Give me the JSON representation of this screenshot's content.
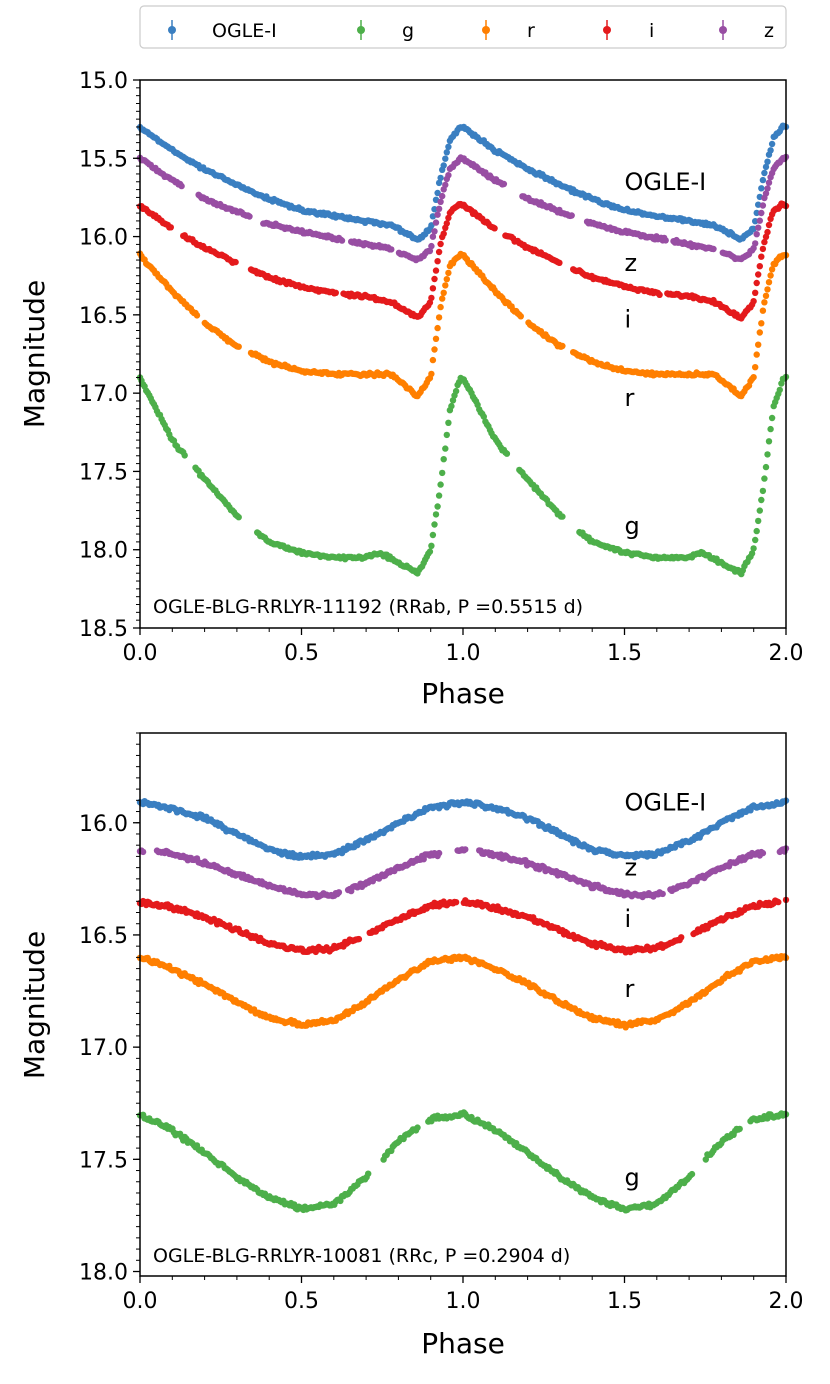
{
  "legend": {
    "placement": "top-center",
    "entries": [
      {
        "label": "OGLE-I",
        "color": "#3a7fc1"
      },
      {
        "label": "g",
        "color": "#4daf4a"
      },
      {
        "label": "r",
        "color": "#ff7f00"
      },
      {
        "label": "i",
        "color": "#e41a1c"
      },
      {
        "label": "z",
        "color": "#984ea3"
      }
    ]
  },
  "chart_data": [
    {
      "type": "scatter",
      "title": "",
      "annotation": "OGLE-BLG-RRLYR-11192 (RRab, P =0.5515 d)",
      "variable_class": "RRab",
      "xlabel": "Phase",
      "ylabel": "Magnitude",
      "xlim": [
        0.0,
        2.0
      ],
      "ylim": [
        18.5,
        15.0
      ],
      "y_inverted": true,
      "xticks": [
        "0.0",
        "0.5",
        "1.0",
        "1.5",
        "2.0"
      ],
      "yticks": [
        "15.0",
        "15.5",
        "16.0",
        "16.5",
        "17.0",
        "17.5",
        "18.0",
        "18.5"
      ],
      "series": [
        {
          "name": "OGLE-I",
          "label": "OGLE-I",
          "label_at": [
            1.5,
            15.65
          ],
          "color": "#3a7fc1",
          "mean": 15.7,
          "amplitude": 0.7,
          "phase": [
            0.0,
            0.1,
            0.2,
            0.3,
            0.4,
            0.5,
            0.6,
            0.7,
            0.78,
            0.86,
            0.9,
            0.93,
            0.96,
            0.99,
            1.0
          ],
          "mag": [
            15.3,
            15.45,
            15.57,
            15.67,
            15.76,
            15.83,
            15.87,
            15.9,
            15.93,
            16.02,
            15.95,
            15.62,
            15.38,
            15.3,
            15.3
          ],
          "gaps": []
        },
        {
          "name": "z",
          "label": "z",
          "label_at": [
            1.5,
            16.17
          ],
          "color": "#984ea3",
          "mean": 15.9,
          "amplitude": 0.6,
          "phase": [
            0.0,
            0.1,
            0.2,
            0.3,
            0.4,
            0.5,
            0.6,
            0.7,
            0.78,
            0.86,
            0.9,
            0.93,
            0.96,
            0.99,
            1.0
          ],
          "mag": [
            15.5,
            15.64,
            15.76,
            15.84,
            15.92,
            15.97,
            16.01,
            16.05,
            16.08,
            16.15,
            16.08,
            15.78,
            15.57,
            15.5,
            15.5
          ],
          "gaps": [
            [
              0.13,
              0.18
            ],
            [
              0.34,
              0.38
            ],
            [
              0.63,
              0.65
            ],
            [
              0.78,
              0.8
            ],
            [
              1.08,
              1.12
            ],
            [
              1.27,
              1.31
            ]
          ]
        },
        {
          "name": "i",
          "label": "i",
          "label_at": [
            1.5,
            16.53
          ],
          "color": "#e41a1c",
          "mean": 16.2,
          "amplitude": 0.73,
          "phase": [
            0.0,
            0.1,
            0.2,
            0.3,
            0.4,
            0.5,
            0.6,
            0.7,
            0.78,
            0.86,
            0.9,
            0.93,
            0.96,
            0.99,
            1.0
          ],
          "mag": [
            15.8,
            15.95,
            16.07,
            16.17,
            16.26,
            16.32,
            16.36,
            16.38,
            16.42,
            16.52,
            16.42,
            16.05,
            15.84,
            15.79,
            15.8
          ],
          "gaps": [
            [
              0.1,
              0.13
            ],
            [
              0.3,
              0.34
            ],
            [
              0.61,
              0.63
            ],
            [
              1.13,
              1.16
            ],
            [
              1.33,
              1.37
            ]
          ]
        },
        {
          "name": "r",
          "label": "r",
          "label_at": [
            1.5,
            17.03
          ],
          "color": "#ff7f00",
          "mean": 16.6,
          "amplitude": 0.9,
          "phase": [
            0.0,
            0.1,
            0.2,
            0.3,
            0.4,
            0.5,
            0.6,
            0.7,
            0.78,
            0.86,
            0.9,
            0.93,
            0.96,
            0.99,
            1.0
          ],
          "mag": [
            16.12,
            16.35,
            16.55,
            16.7,
            16.8,
            16.86,
            16.88,
            16.88,
            16.88,
            17.02,
            16.9,
            16.45,
            16.18,
            16.12,
            16.12
          ],
          "gaps": [
            [
              0.18,
              0.2
            ],
            [
              0.31,
              0.34
            ],
            [
              1.14,
              1.16
            ],
            [
              1.37,
              1.4
            ]
          ]
        },
        {
          "name": "g",
          "label": "g",
          "label_at": [
            1.5,
            17.85
          ],
          "color": "#4daf4a",
          "mean": 17.5,
          "amplitude": 1.27,
          "phase": [
            0.0,
            0.1,
            0.2,
            0.3,
            0.4,
            0.5,
            0.6,
            0.7,
            0.74,
            0.78,
            0.86,
            0.9,
            0.93,
            0.96,
            0.99,
            1.0
          ],
          "mag": [
            16.9,
            17.3,
            17.55,
            17.78,
            17.95,
            18.02,
            18.05,
            18.05,
            18.02,
            18.06,
            18.15,
            18.0,
            17.6,
            17.1,
            16.91,
            16.9
          ],
          "gaps": [
            [
              0.14,
              0.17
            ],
            [
              0.31,
              0.36
            ],
            [
              1.14,
              1.18
            ],
            [
              1.34,
              1.37
            ]
          ]
        }
      ]
    },
    {
      "type": "scatter",
      "title": "",
      "annotation": "OGLE-BLG-RRLYR-10081 (RRc, P =0.2904 d)",
      "variable_class": "RRc",
      "xlabel": "Phase",
      "ylabel": "Magnitude",
      "xlim": [
        0.0,
        2.0
      ],
      "ylim": [
        18.02,
        15.6
      ],
      "y_inverted": true,
      "xticks": [
        "0.0",
        "0.5",
        "1.0",
        "1.5",
        "2.0"
      ],
      "yticks": [
        "16.0",
        "16.5",
        "17.0",
        "17.5",
        "18.0"
      ],
      "series": [
        {
          "name": "OGLE-I",
          "label": "OGLE-I",
          "label_at": [
            1.5,
            15.91
          ],
          "color": "#3a7fc1",
          "mean": 16.03,
          "amplitude": 0.25,
          "phase": [
            0.0,
            0.05,
            0.1,
            0.2,
            0.3,
            0.4,
            0.5,
            0.6,
            0.7,
            0.8,
            0.9,
            1.0
          ],
          "mag": [
            15.91,
            15.92,
            15.94,
            15.98,
            16.05,
            16.12,
            16.15,
            16.14,
            16.08,
            16.0,
            15.93,
            15.91
          ],
          "gaps": []
        },
        {
          "name": "z",
          "label": "z",
          "label_at": [
            1.5,
            16.2
          ],
          "color": "#984ea3",
          "mean": 16.22,
          "amplitude": 0.21,
          "phase": [
            0.0,
            0.1,
            0.2,
            0.3,
            0.4,
            0.5,
            0.6,
            0.7,
            0.8,
            0.9,
            1.0
          ],
          "mag": [
            16.12,
            16.14,
            16.18,
            16.23,
            16.28,
            16.32,
            16.32,
            16.27,
            16.2,
            16.14,
            16.12
          ],
          "gaps": [
            [
              0.01,
              0.05
            ],
            [
              0.62,
              0.64
            ],
            [
              0.93,
              0.98
            ]
          ]
        },
        {
          "name": "i",
          "label": "i",
          "label_at": [
            1.5,
            16.43
          ],
          "color": "#e41a1c",
          "mean": 16.46,
          "amplitude": 0.23,
          "phase": [
            0.0,
            0.1,
            0.2,
            0.3,
            0.4,
            0.5,
            0.6,
            0.7,
            0.8,
            0.9,
            1.0
          ],
          "mag": [
            16.35,
            16.38,
            16.42,
            16.48,
            16.54,
            16.57,
            16.56,
            16.5,
            16.43,
            16.37,
            16.35
          ],
          "gaps": [
            [
              0.68,
              0.71
            ],
            [
              0.98,
              1.0
            ]
          ]
        },
        {
          "name": "r",
          "label": "r",
          "label_at": [
            1.5,
            16.74
          ],
          "color": "#ff7f00",
          "mean": 16.75,
          "amplitude": 0.31,
          "phase": [
            0.0,
            0.1,
            0.2,
            0.3,
            0.4,
            0.5,
            0.6,
            0.7,
            0.8,
            0.9,
            1.0
          ],
          "mag": [
            16.6,
            16.65,
            16.72,
            16.8,
            16.87,
            16.9,
            16.88,
            16.8,
            16.7,
            16.62,
            16.6
          ],
          "gaps": []
        },
        {
          "name": "g",
          "label": "g",
          "label_at": [
            1.5,
            17.58
          ],
          "color": "#4daf4a",
          "mean": 17.5,
          "amplitude": 0.42,
          "phase": [
            0.0,
            0.1,
            0.2,
            0.3,
            0.4,
            0.5,
            0.6,
            0.7,
            0.8,
            0.9,
            1.0
          ],
          "mag": [
            17.3,
            17.37,
            17.47,
            17.58,
            17.67,
            17.72,
            17.7,
            17.58,
            17.42,
            17.32,
            17.3
          ],
          "gaps": [
            [
              0.71,
              0.75
            ],
            [
              0.86,
              0.89
            ]
          ]
        }
      ]
    }
  ]
}
